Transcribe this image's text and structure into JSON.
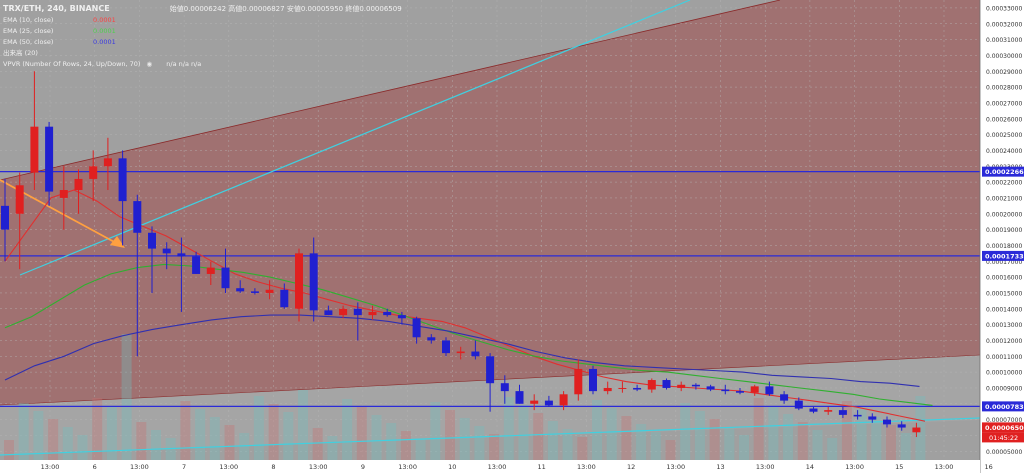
{
  "legend": {
    "symbol": "TRX/ETH, 240, BINANCE",
    "ohlc": "始値0.00006242  高値0.00006827  安値0.00005950  終値0.00006509",
    "indicators": [
      {
        "label": "EMA (10, close)",
        "value": "0.0001",
        "color": "#ff4040"
      },
      {
        "label": "EMA (25, close)",
        "value": "0.0001",
        "color": "#4cd14c"
      },
      {
        "label": "EMA (50, close)",
        "value": "0.0001",
        "color": "#3030c8"
      },
      {
        "label": "出来高 (20)",
        "value": "",
        "color": "#ffffff"
      },
      {
        "label": "VPVR (Number Of Rows, 24, Up/Down, 70)",
        "value": "",
        "color": "#ffffff"
      }
    ],
    "vpvr_values": "n/a  n/a  n/a"
  },
  "colors": {
    "bull": "#e02020",
    "bear": "#2020d0",
    "ema10": "#e03030",
    "ema25": "#30b030",
    "ema50": "#3030b0",
    "hline": "#2a2ad8",
    "trendline": "#40d0e0",
    "arrow": "#ffa040",
    "axis_bg": "#ffffff",
    "price_tag_blue": "#2a2ad8",
    "price_tag_red": "#e02020"
  },
  "chart_data": {
    "type": "candlestick",
    "y_ticks": [
      "0.00033000",
      "0.00032000",
      "0.00031000",
      "0.00030000",
      "0.00029000",
      "0.00028000",
      "0.00027000",
      "0.00026000",
      "0.00025000",
      "0.00024000",
      "0.00023000",
      "0.00022000",
      "0.00021000",
      "0.00020000",
      "0.00019000",
      "0.00018000",
      "0.00017000",
      "0.00016000",
      "0.00015000",
      "0.00014000",
      "0.00013000",
      "0.00012000",
      "0.00011000",
      "0.00010000",
      "0.00009000",
      "0.00008000",
      "0.00007000",
      "0.00006000",
      "0.00005000"
    ],
    "ylim": [
      4.45e-05,
      0.000335
    ],
    "x_labels": [
      "13:00",
      "6",
      "13:00",
      "7",
      "13:00",
      "8",
      "13:00",
      "9",
      "13:00",
      "10",
      "13:00",
      "11",
      "13:00",
      "12",
      "13:00",
      "13",
      "13:00",
      "14",
      "13:00",
      "15",
      "13:00",
      "16"
    ],
    "price_labels": [
      {
        "text": "0.00022660",
        "value": 0.0002266,
        "kind": "blue"
      },
      {
        "text": "0.00017339",
        "value": 0.00017339,
        "kind": "blue"
      },
      {
        "text": "0.00007836",
        "value": 7.836e-05,
        "kind": "blue"
      },
      {
        "text": "0.00006509",
        "value": 6.509e-05,
        "kind": "red"
      }
    ],
    "countdown": "01:45:22",
    "candles": [
      {
        "o": 0.000205,
        "h": 0.000222,
        "l": 0.00017,
        "c": 0.00019
      },
      {
        "o": 0.0002,
        "h": 0.000226,
        "l": 0.000165,
        "c": 0.000218
      },
      {
        "o": 0.000226,
        "h": 0.00029,
        "l": 0.000215,
        "c": 0.000255
      },
      {
        "o": 0.000255,
        "h": 0.000258,
        "l": 0.000205,
        "c": 0.000214
      },
      {
        "o": 0.00021,
        "h": 0.00023,
        "l": 0.00019,
        "c": 0.000215
      },
      {
        "o": 0.000215,
        "h": 0.000228,
        "l": 0.0002,
        "c": 0.000222
      },
      {
        "o": 0.000222,
        "h": 0.00024,
        "l": 0.000208,
        "c": 0.00023
      },
      {
        "o": 0.00023,
        "h": 0.000248,
        "l": 0.000215,
        "c": 0.000235
      },
      {
        "o": 0.000235,
        "h": 0.00024,
        "l": 0.00018,
        "c": 0.000208
      },
      {
        "o": 0.000208,
        "h": 0.000212,
        "l": 0.00011,
        "c": 0.000188
      },
      {
        "o": 0.000188,
        "h": 0.000192,
        "l": 0.00015,
        "c": 0.000178
      },
      {
        "o": 0.000178,
        "h": 0.000182,
        "l": 0.000165,
        "c": 0.000175
      },
      {
        "o": 0.000175,
        "h": 0.000185,
        "l": 0.000138,
        "c": 0.000173
      },
      {
        "o": 0.000173,
        "h": 0.000176,
        "l": 0.000162,
        "c": 0.000162
      },
      {
        "o": 0.000162,
        "h": 0.00017,
        "l": 0.000155,
        "c": 0.000166
      },
      {
        "o": 0.000166,
        "h": 0.000178,
        "l": 0.00015,
        "c": 0.000153
      },
      {
        "o": 0.000153,
        "h": 0.000158,
        "l": 0.00015,
        "c": 0.000151
      },
      {
        "o": 0.000151,
        "h": 0.000153,
        "l": 0.000149,
        "c": 0.00015
      },
      {
        "o": 0.00015,
        "h": 0.000158,
        "l": 0.000146,
        "c": 0.000152
      },
      {
        "o": 0.000152,
        "h": 0.000156,
        "l": 0.00014,
        "c": 0.000141
      },
      {
        "o": 0.00014,
        "h": 0.000178,
        "l": 0.000132,
        "c": 0.000175
      },
      {
        "o": 0.000175,
        "h": 0.000185,
        "l": 0.000132,
        "c": 0.000139
      },
      {
        "o": 0.000139,
        "h": 0.000142,
        "l": 0.000136,
        "c": 0.000136
      },
      {
        "o": 0.000136,
        "h": 0.000142,
        "l": 0.000134,
        "c": 0.00014
      },
      {
        "o": 0.00014,
        "h": 0.000144,
        "l": 0.00012,
        "c": 0.000136
      },
      {
        "o": 0.000136,
        "h": 0.000142,
        "l": 0.000133,
        "c": 0.000138
      },
      {
        "o": 0.000138,
        "h": 0.00014,
        "l": 0.000135,
        "c": 0.000136
      },
      {
        "o": 0.000136,
        "h": 0.000138,
        "l": 0.00013,
        "c": 0.000134
      },
      {
        "o": 0.000134,
        "h": 0.000135,
        "l": 0.000118,
        "c": 0.000122
      },
      {
        "o": 0.000122,
        "h": 0.000124,
        "l": 0.000118,
        "c": 0.00012
      },
      {
        "o": 0.00012,
        "h": 0.000122,
        "l": 0.00011,
        "c": 0.000112
      },
      {
        "o": 0.000112,
        "h": 0.000116,
        "l": 0.000108,
        "c": 0.000113
      },
      {
        "o": 0.000113,
        "h": 0.00012,
        "l": 0.000108,
        "c": 0.00011
      },
      {
        "o": 0.00011,
        "h": 0.000112,
        "l": 7.5e-05,
        "c": 9.3e-05
      },
      {
        "o": 9.3e-05,
        "h": 9.8e-05,
        "l": 8e-05,
        "c": 8.8e-05
      },
      {
        "o": 8.8e-05,
        "h": 9.2e-05,
        "l": 8e-05,
        "c": 8e-05
      },
      {
        "o": 8e-05,
        "h": 8.6e-05,
        "l": 7.6e-05,
        "c": 8.2e-05
      },
      {
        "o": 8.2e-05,
        "h": 8.5e-05,
        "l": 7.8e-05,
        "c": 7.9e-05
      },
      {
        "o": 7.9e-05,
        "h": 8.8e-05,
        "l": 7.6e-05,
        "c": 8.6e-05
      },
      {
        "o": 8.6e-05,
        "h": 0.000108,
        "l": 8.2e-05,
        "c": 0.000102
      },
      {
        "o": 0.000102,
        "h": 0.000104,
        "l": 8.6e-05,
        "c": 8.8e-05
      },
      {
        "o": 8.8e-05,
        "h": 9.4e-05,
        "l": 8.6e-05,
        "c": 9e-05
      },
      {
        "o": 9e-05,
        "h": 9.4e-05,
        "l": 8.7e-05,
        "c": 9e-05
      },
      {
        "o": 9e-05,
        "h": 9.2e-05,
        "l": 8.8e-05,
        "c": 8.9e-05
      },
      {
        "o": 8.9e-05,
        "h": 9.6e-05,
        "l": 8.7e-05,
        "c": 9.5e-05
      },
      {
        "o": 9.5e-05,
        "h": 9.6e-05,
        "l": 8.9e-05,
        "c": 9e-05
      },
      {
        "o": 9e-05,
        "h": 9.4e-05,
        "l": 8.8e-05,
        "c": 9.2e-05
      },
      {
        "o": 9.2e-05,
        "h": 9.3e-05,
        "l": 8.9e-05,
        "c": 9.1e-05
      },
      {
        "o": 9.1e-05,
        "h": 9.2e-05,
        "l": 8.8e-05,
        "c": 8.9e-05
      },
      {
        "o": 8.9e-05,
        "h": 9.2e-05,
        "l": 8.6e-05,
        "c": 8.8e-05
      },
      {
        "o": 8.8e-05,
        "h": 9e-05,
        "l": 8.6e-05,
        "c": 8.7e-05
      },
      {
        "o": 8.7e-05,
        "h": 9.2e-05,
        "l": 8.5e-05,
        "c": 9.1e-05
      },
      {
        "o": 9.1e-05,
        "h": 9.4e-05,
        "l": 8.5e-05,
        "c": 8.6e-05
      },
      {
        "o": 8.6e-05,
        "h": 8.8e-05,
        "l": 8e-05,
        "c": 8.2e-05
      },
      {
        "o": 8.2e-05,
        "h": 8.4e-05,
        "l": 7.6e-05,
        "c": 7.7e-05
      },
      {
        "o": 7.7e-05,
        "h": 7.8e-05,
        "l": 7.4e-05,
        "c": 7.5e-05
      },
      {
        "o": 7.5e-05,
        "h": 7.8e-05,
        "l": 7.3e-05,
        "c": 7.6e-05
      },
      {
        "o": 7.6e-05,
        "h": 7.8e-05,
        "l": 7.1e-05,
        "c": 7.3e-05
      },
      {
        "o": 7.3e-05,
        "h": 7.6e-05,
        "l": 7e-05,
        "c": 7.2e-05
      },
      {
        "o": 7.2e-05,
        "h": 7.4e-05,
        "l": 6.8e-05,
        "c": 7e-05
      },
      {
        "o": 7e-05,
        "h": 7.2e-05,
        "l": 6.5e-05,
        "c": 6.7e-05
      },
      {
        "o": 6.7e-05,
        "h": 6.9e-05,
        "l": 6.3e-05,
        "c": 6.5e-05
      },
      {
        "o": 6.2e-05,
        "h": 6.8e-05,
        "l": 5.9e-05,
        "c": 6.5e-05
      }
    ],
    "ema10": [
      0.00017,
      0.00019,
      0.00021,
      0.000215,
      0.000208,
      0.000198,
      0.000192,
      0.000186,
      0.000178,
      0.00017,
      0.000162,
      0.000157,
      0.000153,
      0.00015,
      0.000146,
      0.000142,
      0.000139,
      0.000136,
      0.000134,
      0.000132,
      0.000128,
      0.000122,
      0.000116,
      0.00011,
      0.000105,
      0.000101,
      9.7e-05,
      9.4e-05,
      9.2e-05,
      9.1e-05,
      9e-05,
      8.9e-05,
      8.8e-05,
      8.6e-05,
      8.4e-05,
      8.2e-05,
      8e-05,
      7.8e-05,
      7.5e-05,
      7.2e-05,
      6.9e-05
    ],
    "ema25": [
      0.000128,
      0.000135,
      0.000145,
      0.000155,
      0.000162,
      0.000166,
      0.000168,
      0.000167,
      0.000165,
      0.000163,
      0.00016,
      0.000156,
      0.000152,
      0.000147,
      0.000142,
      0.000136,
      0.00013,
      0.000124,
      0.000119,
      0.000114,
      0.00011,
      0.000107,
      0.000105,
      0.000103,
      0.000101,
      0.0001,
      9.8e-05,
      9.6e-05,
      9.4e-05,
      9.2e-05,
      9e-05,
      8.8e-05,
      8.6e-05,
      8.3e-05,
      8.1e-05,
      7.9e-05
    ],
    "ema50": [
      9.5e-05,
      0.000104,
      0.00011,
      0.000118,
      0.000123,
      0.000127,
      0.00013,
      0.000133,
      0.000135,
      0.000136,
      0.000136,
      0.000135,
      0.000134,
      0.000132,
      0.000129,
      0.000126,
      0.000122,
      0.000118,
      0.000113,
      0.000109,
      0.000106,
      0.000104,
      0.000103,
      0.000102,
      0.000101,
      0.0001,
      9.8e-05,
      9.7e-05,
      9.6e-05,
      9.4e-05,
      9.3e-05,
      9.1e-05
    ]
  }
}
